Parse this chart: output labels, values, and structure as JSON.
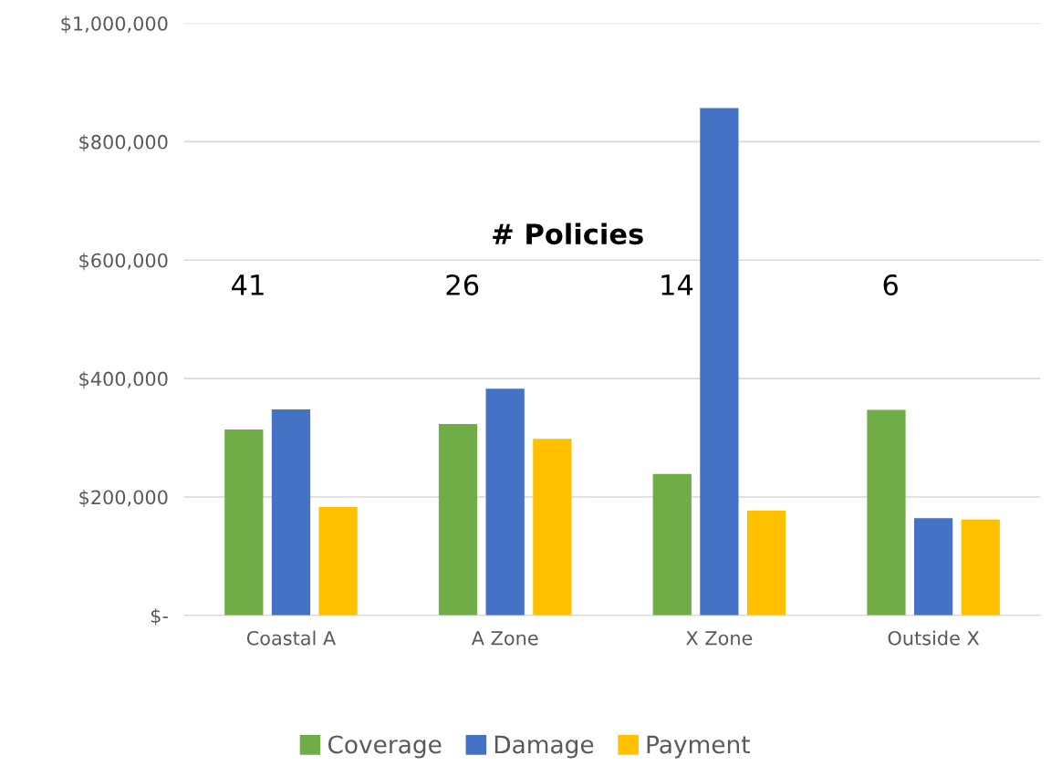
{
  "chart_data": {
    "type": "bar",
    "categories": [
      "Coastal A",
      "A Zone",
      "X Zone",
      "Outside X"
    ],
    "series": [
      {
        "name": "Coverage",
        "color": "#70ad47",
        "values": [
          314000,
          323000,
          239000,
          347000
        ]
      },
      {
        "name": "Damage",
        "color": "#4472c4",
        "values": [
          348000,
          383000,
          857000,
          164000
        ]
      },
      {
        "name": "Payment",
        "color": "#ffc000",
        "values": [
          183000,
          298000,
          177000,
          162000
        ]
      }
    ],
    "ylim": [
      0,
      1000000
    ],
    "yticks": [
      {
        "value": 0,
        "label": "$-"
      },
      {
        "value": 200000,
        "label": "$200,000"
      },
      {
        "value": 400000,
        "label": "$400,000"
      },
      {
        "value": 600000,
        "label": "$600,000"
      },
      {
        "value": 800000,
        "label": "$800,000"
      },
      {
        "value": 1000000,
        "label": "$1,000,000"
      }
    ],
    "annotations": [
      "# Policies",
      "41",
      "26",
      "14",
      "6"
    ],
    "grid": "y",
    "legend": "bottom"
  }
}
